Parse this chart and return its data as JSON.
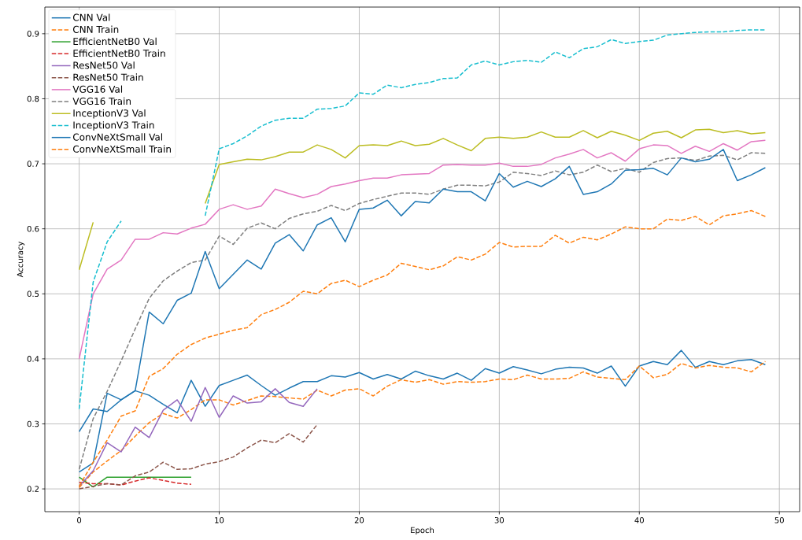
{
  "chart_data": {
    "type": "line",
    "xlabel": "Epoch",
    "ylabel": "Accuracy",
    "xlim": [
      -2.45,
      51.45
    ],
    "ylim": [
      0.165,
      0.941
    ],
    "xticks": [
      0,
      10,
      20,
      30,
      40,
      50
    ],
    "yticks": [
      0.2,
      0.3,
      0.4,
      0.5,
      0.6,
      0.7,
      0.8,
      0.9
    ],
    "grid": true,
    "legend": "top left",
    "x": [
      0,
      1,
      2,
      3,
      4,
      5,
      6,
      7,
      8,
      9,
      10,
      11,
      12,
      13,
      14,
      15,
      16,
      17,
      18,
      19,
      20,
      21,
      22,
      23,
      24,
      25,
      26,
      27,
      28,
      29,
      30,
      31,
      32,
      33,
      34,
      35,
      36,
      37,
      38,
      39,
      40,
      41,
      42,
      43,
      44,
      45,
      46,
      47,
      48,
      49
    ],
    "series": [
      {
        "name": "CNN Val",
        "color": "#1f77b4",
        "line_style": "solid",
        "values": [
          0.288,
          0.323,
          0.319,
          0.337,
          0.351,
          0.344,
          0.33,
          0.317,
          0.367,
          0.327,
          0.359,
          0.367,
          0.375,
          0.359,
          0.344,
          0.355,
          0.365,
          0.365,
          0.374,
          0.372,
          0.379,
          0.369,
          0.376,
          0.369,
          0.381,
          0.374,
          0.369,
          0.378,
          0.367,
          0.385,
          0.378,
          0.388,
          0.383,
          0.377,
          0.384,
          0.387,
          0.386,
          0.378,
          0.389,
          0.358,
          0.389,
          0.396,
          0.391,
          0.413,
          0.387,
          0.396,
          0.391,
          0.397,
          0.399,
          0.391
        ]
      },
      {
        "name": "CNN Train",
        "color": "#ff7f0e",
        "line_style": "dashed",
        "values": [
          0.202,
          0.226,
          0.243,
          0.259,
          0.281,
          0.302,
          0.316,
          0.309,
          0.322,
          0.337,
          0.337,
          0.329,
          0.336,
          0.343,
          0.342,
          0.34,
          0.338,
          0.352,
          0.343,
          0.352,
          0.354,
          0.343,
          0.358,
          0.368,
          0.364,
          0.368,
          0.361,
          0.365,
          0.364,
          0.365,
          0.369,
          0.368,
          0.375,
          0.369,
          0.369,
          0.37,
          0.38,
          0.372,
          0.37,
          0.368,
          0.389,
          0.371,
          0.376,
          0.393,
          0.386,
          0.39,
          0.387,
          0.386,
          0.38,
          0.396
        ]
      },
      {
        "name": "EfficientNetB0 Val",
        "color": "#2ca02c",
        "line_style": "solid",
        "x": [
          0,
          1,
          2,
          3,
          4,
          5,
          6,
          7,
          8
        ],
        "values": [
          0.218,
          0.203,
          0.218,
          0.218,
          0.218,
          0.218,
          0.218,
          0.218,
          0.218
        ]
      },
      {
        "name": "EfficientNetB0 Train",
        "color": "#d62728",
        "line_style": "dashed",
        "x": [
          0,
          1,
          2,
          3,
          4,
          5,
          6,
          7,
          8
        ],
        "values": [
          0.21,
          0.208,
          0.208,
          0.206,
          0.212,
          0.217,
          0.213,
          0.209,
          0.207
        ]
      },
      {
        "name": "ResNet50 Val",
        "color": "#9467bd",
        "line_style": "solid",
        "x": [
          0,
          1,
          2,
          3,
          4,
          5,
          6,
          7,
          8,
          9,
          10,
          11,
          12,
          13,
          14,
          15,
          16,
          17
        ],
        "values": [
          0.204,
          0.228,
          0.271,
          0.257,
          0.295,
          0.279,
          0.321,
          0.337,
          0.304,
          0.356,
          0.31,
          0.343,
          0.332,
          0.334,
          0.354,
          0.333,
          0.327,
          0.354
        ]
      },
      {
        "name": "ResNet50 Train",
        "color": "#8c564b",
        "line_style": "dashed",
        "x": [
          0,
          1,
          2,
          3,
          4,
          5,
          6,
          7,
          8,
          9,
          10,
          11,
          12,
          13,
          14,
          15,
          16,
          17
        ],
        "values": [
          0.2,
          0.204,
          0.208,
          0.206,
          0.22,
          0.226,
          0.241,
          0.23,
          0.231,
          0.238,
          0.242,
          0.249,
          0.263,
          0.275,
          0.271,
          0.285,
          0.272,
          0.299
        ]
      },
      {
        "name": "VGG16 Val",
        "color": "#e377c2",
        "line_style": "solid",
        "values": [
          0.4,
          0.5,
          0.538,
          0.552,
          0.584,
          0.584,
          0.594,
          0.592,
          0.601,
          0.607,
          0.63,
          0.637,
          0.63,
          0.635,
          0.661,
          0.654,
          0.648,
          0.653,
          0.665,
          0.669,
          0.674,
          0.678,
          0.678,
          0.683,
          0.684,
          0.685,
          0.698,
          0.699,
          0.698,
          0.698,
          0.701,
          0.696,
          0.696,
          0.699,
          0.709,
          0.715,
          0.722,
          0.709,
          0.717,
          0.704,
          0.723,
          0.729,
          0.728,
          0.716,
          0.727,
          0.719,
          0.731,
          0.721,
          0.734,
          0.736
        ]
      },
      {
        "name": "VGG16 Train",
        "color": "#7f7f7f",
        "line_style": "dashed",
        "values": [
          0.23,
          0.308,
          0.35,
          0.397,
          0.446,
          0.493,
          0.52,
          0.535,
          0.548,
          0.552,
          0.589,
          0.576,
          0.601,
          0.609,
          0.6,
          0.616,
          0.623,
          0.627,
          0.636,
          0.628,
          0.639,
          0.645,
          0.65,
          0.655,
          0.655,
          0.653,
          0.661,
          0.667,
          0.667,
          0.666,
          0.672,
          0.687,
          0.685,
          0.682,
          0.689,
          0.683,
          0.687,
          0.698,
          0.688,
          0.693,
          0.687,
          0.702,
          0.708,
          0.709,
          0.705,
          0.712,
          0.713,
          0.706,
          0.717,
          0.716
        ]
      },
      {
        "name": "InceptionV3 Val",
        "color": "#bcbd22",
        "line_style": "solid",
        "values": [
          0.537,
          0.61,
          null,
          null,
          null,
          null,
          null,
          null,
          null,
          0.639,
          0.699,
          0.703,
          0.707,
          0.706,
          0.711,
          0.718,
          0.718,
          0.729,
          0.722,
          0.709,
          0.728,
          0.729,
          0.728,
          0.735,
          0.728,
          0.73,
          0.739,
          0.729,
          0.72,
          0.739,
          0.741,
          0.739,
          0.741,
          0.749,
          0.741,
          0.741,
          0.751,
          0.74,
          0.75,
          0.744,
          0.736,
          0.747,
          0.75,
          0.74,
          0.752,
          0.753,
          0.748,
          0.751,
          0.746,
          0.748
        ]
      },
      {
        "name": "InceptionV3 Train",
        "color": "#17becf",
        "line_style": "dashed",
        "values": [
          0.323,
          0.518,
          0.58,
          0.612,
          null,
          null,
          null,
          null,
          null,
          0.62,
          0.723,
          0.731,
          0.743,
          0.758,
          0.767,
          0.77,
          0.77,
          0.784,
          0.785,
          0.789,
          0.809,
          0.807,
          0.821,
          0.817,
          0.822,
          0.825,
          0.831,
          0.832,
          0.852,
          0.858,
          0.852,
          0.857,
          0.859,
          0.856,
          0.872,
          0.863,
          0.877,
          0.88,
          0.891,
          0.885,
          0.888,
          0.89,
          0.898,
          0.9,
          0.902,
          0.903,
          0.903,
          0.905,
          0.906,
          0.906
        ]
      },
      {
        "name": "ConvNeXtSmall Val",
        "color": "#1f77b4",
        "line_style": "solid",
        "values": [
          0.226,
          0.24,
          0.347,
          0.337,
          0.351,
          0.472,
          0.454,
          0.49,
          0.501,
          0.565,
          0.508,
          0.53,
          0.552,
          0.538,
          0.578,
          0.591,
          0.566,
          0.606,
          0.617,
          0.58,
          0.63,
          0.632,
          0.644,
          0.62,
          0.642,
          0.64,
          0.661,
          0.657,
          0.657,
          0.643,
          0.685,
          0.664,
          0.673,
          0.665,
          0.677,
          0.696,
          0.653,
          0.657,
          0.669,
          0.69,
          0.691,
          0.693,
          0.683,
          0.709,
          0.703,
          0.707,
          0.722,
          0.674,
          0.683,
          0.694
        ]
      },
      {
        "name": "ConvNeXtSmall Train",
        "color": "#ff7f0e",
        "line_style": "dashed",
        "values": [
          0.204,
          0.241,
          0.275,
          0.312,
          0.32,
          0.373,
          0.385,
          0.407,
          0.422,
          0.432,
          0.438,
          0.444,
          0.448,
          0.468,
          0.476,
          0.487,
          0.504,
          0.5,
          0.516,
          0.521,
          0.511,
          0.521,
          0.529,
          0.547,
          0.542,
          0.537,
          0.543,
          0.557,
          0.552,
          0.561,
          0.579,
          0.572,
          0.573,
          0.573,
          0.59,
          0.578,
          0.587,
          0.583,
          0.592,
          0.603,
          0.6,
          0.6,
          0.615,
          0.613,
          0.619,
          0.606,
          0.62,
          0.623,
          0.628,
          0.619
        ]
      }
    ]
  }
}
